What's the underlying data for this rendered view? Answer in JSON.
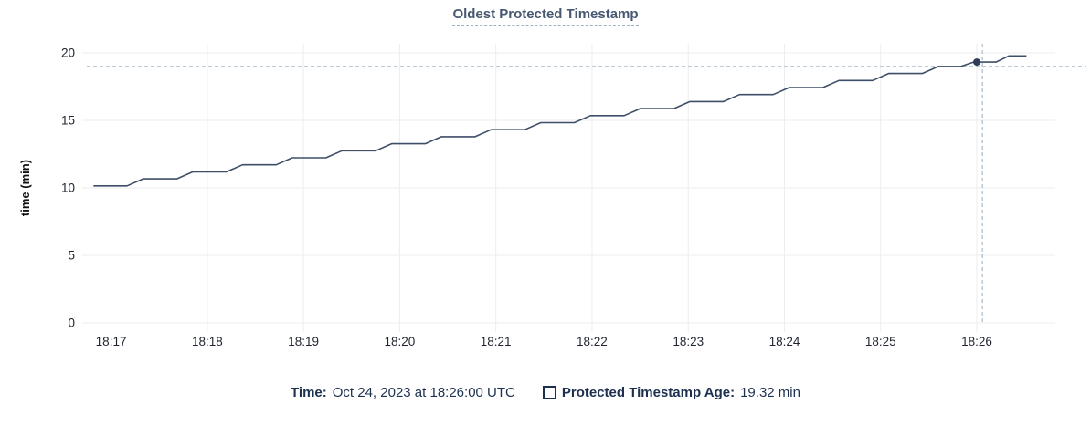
{
  "header": {
    "title": "Oldest Protected Timestamp"
  },
  "legend": {
    "time_label": "Time:",
    "time_value": "Oct 24, 2023 at 18:26:00 UTC",
    "series_label": "Protected Timestamp Age:",
    "series_value": "19.32 min"
  },
  "chart_data": {
    "type": "line",
    "title": "Oldest Protected Timestamp",
    "xlabel": "",
    "ylabel": "time (min)",
    "ylim": [
      0,
      20
    ],
    "y_ticks": [
      0,
      5,
      10,
      15,
      20
    ],
    "xlim_seconds": [
      -18,
      589
    ],
    "x_ticks": [
      {
        "t": 0,
        "label": "18:17"
      },
      {
        "t": 60,
        "label": "18:18"
      },
      {
        "t": 120,
        "label": "18:19"
      },
      {
        "t": 180,
        "label": "18:20"
      },
      {
        "t": 240,
        "label": "18:21"
      },
      {
        "t": 300,
        "label": "18:22"
      },
      {
        "t": 360,
        "label": "18:23"
      },
      {
        "t": 420,
        "label": "18:24"
      },
      {
        "t": 480,
        "label": "18:25"
      },
      {
        "t": 540,
        "label": "18:26"
      }
    ],
    "grid": true,
    "legend_position": "bottom",
    "series": [
      {
        "name": "Protected Timestamp Age",
        "unit": "min",
        "points": [
          [
            -11,
            10.15
          ],
          [
            10,
            10.15
          ],
          [
            20,
            10.67
          ],
          [
            41,
            10.67
          ],
          [
            51,
            11.19
          ],
          [
            72,
            11.19
          ],
          [
            82,
            11.71
          ],
          [
            103,
            11.71
          ],
          [
            113,
            12.23
          ],
          [
            134,
            12.23
          ],
          [
            144,
            12.75
          ],
          [
            165,
            12.75
          ],
          [
            175,
            13.27
          ],
          [
            196,
            13.27
          ],
          [
            206,
            13.79
          ],
          [
            227,
            13.79
          ],
          [
            237,
            14.31
          ],
          [
            258,
            14.31
          ],
          [
            268,
            14.83
          ],
          [
            289,
            14.83
          ],
          [
            299,
            15.35
          ],
          [
            320,
            15.35
          ],
          [
            330,
            15.87
          ],
          [
            351,
            15.87
          ],
          [
            361,
            16.39
          ],
          [
            382,
            16.39
          ],
          [
            392,
            16.91
          ],
          [
            413,
            16.91
          ],
          [
            423,
            17.43
          ],
          [
            444,
            17.43
          ],
          [
            454,
            17.95
          ],
          [
            475,
            17.95
          ],
          [
            485,
            18.47
          ],
          [
            506,
            18.47
          ],
          [
            516,
            18.99
          ],
          [
            530,
            18.99
          ],
          [
            538,
            19.32
          ],
          [
            552,
            19.32
          ],
          [
            560,
            19.78
          ],
          [
            571,
            19.78
          ]
        ]
      }
    ],
    "highlight": {
      "t": 540,
      "value": 19.32,
      "crosshair_t": 543.5,
      "crosshair_value": 19.0
    },
    "colors": {
      "line": "#3f4e68",
      "marker": "#2e3c57",
      "crosshair": "#a6bbca",
      "grid": "#ededed",
      "tick_text": "#1f2530"
    }
  }
}
